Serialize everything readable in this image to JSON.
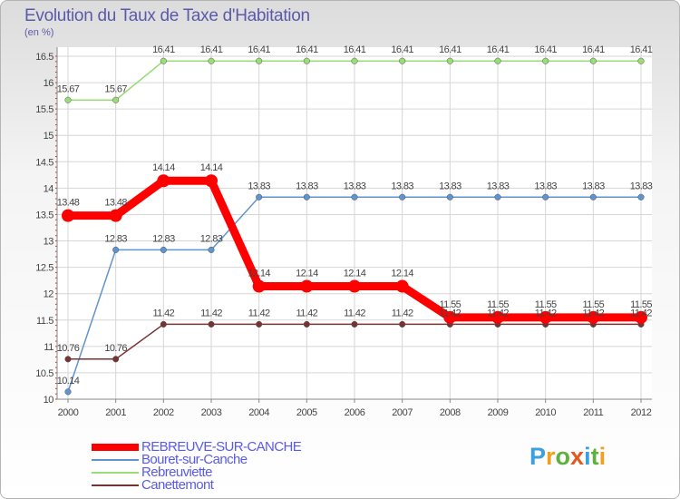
{
  "title": "Evolution du Taux de Taxe d'Habitation",
  "subtitle": "(en %)",
  "brand": {
    "letters": [
      "P",
      "r",
      "o",
      "x",
      "i",
      "t",
      "i"
    ],
    "colors": [
      "#3aa0e0",
      "#f0a020",
      "#60b040",
      "#e05a20",
      "#3aa0e0",
      "#60b040",
      "#f0a020"
    ]
  },
  "chart_data": {
    "type": "line",
    "x": [
      "2000",
      "2001",
      "2002",
      "2003",
      "2004",
      "2005",
      "2006",
      "2007",
      "2008",
      "2009",
      "2010",
      "2011",
      "2012"
    ],
    "ylim": [
      10,
      16.5
    ],
    "yticks": [
      "10",
      "10.5",
      "11",
      "11.5",
      "12",
      "12.5",
      "13",
      "13.5",
      "14",
      "14.5",
      "15",
      "15.5",
      "16",
      "16.5"
    ],
    "grid": true,
    "legend_position": "bottom-left",
    "series": [
      {
        "name": "REBREUVE-SUR-CANCHE",
        "color": "#ff0000",
        "values": [
          13.48,
          13.48,
          14.14,
          14.14,
          12.14,
          12.14,
          12.14,
          12.14,
          11.55,
          11.55,
          11.55,
          11.55,
          11.55
        ],
        "labels": [
          "13.48",
          "13.48",
          "14.14",
          "14.14",
          "12.14",
          "12.14",
          "12.14",
          "12.14",
          "11.55",
          "11.55",
          "11.55",
          "11.55",
          "11.55"
        ]
      },
      {
        "name": "Bouret-sur-Canche",
        "color": "#5f94cf",
        "values": [
          10.14,
          12.83,
          12.83,
          12.83,
          13.83,
          13.83,
          13.83,
          13.83,
          13.83,
          13.83,
          13.83,
          13.83,
          13.83
        ],
        "labels": [
          "10.14",
          "12.83",
          "12.83",
          "12.83",
          "13.83",
          "13.83",
          "13.83",
          "13.83",
          "13.83",
          "13.83",
          "13.83",
          "13.83",
          "13.83"
        ]
      },
      {
        "name": "Rebreuviette",
        "color": "#99dd77",
        "values": [
          15.67,
          15.67,
          16.41,
          16.41,
          16.41,
          16.41,
          16.41,
          16.41,
          16.41,
          16.41,
          16.41,
          16.41,
          16.41
        ],
        "labels": [
          "15.67",
          "15.67",
          "16.41",
          "16.41",
          "16.41",
          "16.41",
          "16.41",
          "16.41",
          "16.41",
          "16.41",
          "16.41",
          "16.41",
          "16.41"
        ]
      },
      {
        "name": "Canettemont",
        "color": "#773333",
        "values": [
          10.76,
          10.76,
          11.42,
          11.42,
          11.42,
          11.42,
          11.42,
          11.42,
          11.42,
          11.42,
          11.42,
          11.42,
          11.42
        ],
        "labels": [
          "10.76",
          "10.76",
          "11.42",
          "11.42",
          "11.42",
          "11.42",
          "11.42",
          "11.42",
          "11.42",
          "11.42",
          "11.42",
          "11.42",
          "11.42"
        ]
      }
    ]
  }
}
